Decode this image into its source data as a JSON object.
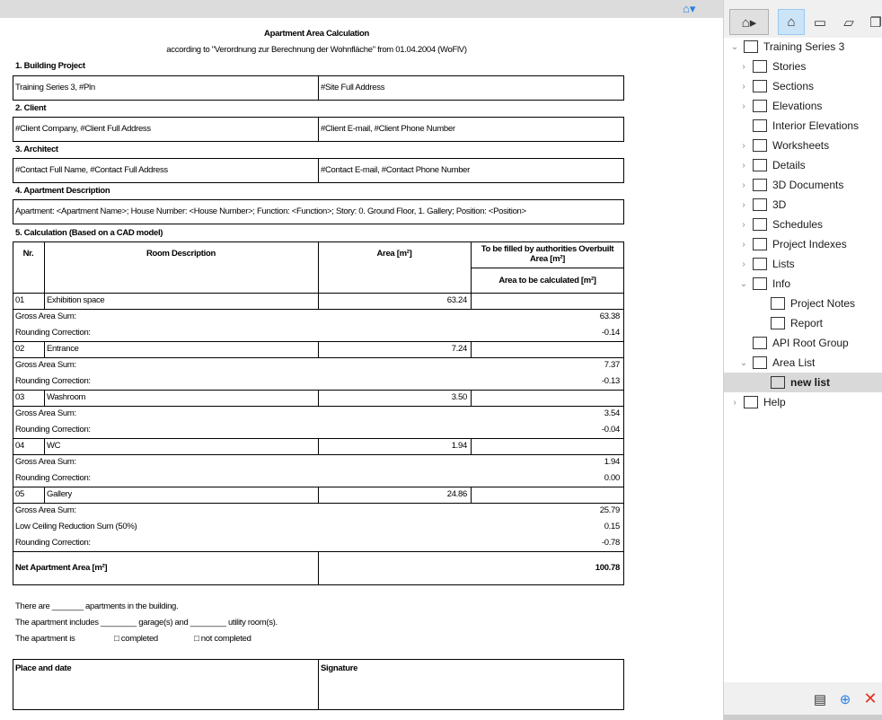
{
  "toolbar": {
    "icon": "tree-view-icon"
  },
  "doc": {
    "title": "Apartment Area Calculation",
    "subtitle": "according to \"Verordnung zur Berechnung der Wohnfläche\" from 01.04.2004 (WoFlV)",
    "s1": "1. Building Project",
    "s1a": "Training Series 3, #Pln",
    "s1b": "#Site Full Address",
    "s2": "2. Client",
    "s2a": "#Client Company, #Client Full Address",
    "s2b": "#Client E-mail, #Client Phone Number",
    "s3": "3. Architect",
    "s3a": "#Contact Full Name, #Contact Full Address",
    "s3b": "#Contact E-mail, #Contact Phone Number",
    "s4": "4. Apartment Description",
    "s4a": "Apartment: <Apartment Name>; House Number: <House Number>; Function: <Function>; Story: 0. Ground Floor, 1. Gallery; Position: <Position>",
    "s5": "5. Calculation (Based on a CAD model)",
    "h_nr": "Nr.",
    "h_desc": "Room Description",
    "h_area": "Area [m²]",
    "h_auth": "To be filled by authorities Overbuilt Area [m²]",
    "h_calc": "Area to be calculated [m²]",
    "rooms": [
      {
        "nr": "01",
        "name": "Exhibition space",
        "area": "63.24",
        "sums": [
          [
            "Gross Area Sum:",
            "63.38"
          ],
          [
            "Rounding Correction:",
            "-0.14"
          ]
        ]
      },
      {
        "nr": "02",
        "name": "Entrance",
        "area": "7.24",
        "sums": [
          [
            "Gross Area Sum:",
            "7.37"
          ],
          [
            "Rounding Correction:",
            "-0.13"
          ]
        ]
      },
      {
        "nr": "03",
        "name": "Washroom",
        "area": "3.50",
        "sums": [
          [
            "Gross Area Sum:",
            "3.54"
          ],
          [
            "Rounding Correction:",
            "-0.04"
          ]
        ]
      },
      {
        "nr": "04",
        "name": "WC",
        "area": "1.94",
        "sums": [
          [
            "Gross Area Sum:",
            "1.94"
          ],
          [
            "Rounding Correction:",
            "0.00"
          ]
        ]
      },
      {
        "nr": "05",
        "name": "Gallery",
        "area": "24.86",
        "sums": [
          [
            "Gross Area Sum:",
            "25.79"
          ],
          [
            "Low Ceiling Reduction Sum (50%)",
            "0.15"
          ],
          [
            "Rounding Correction:",
            "-0.78"
          ]
        ]
      }
    ],
    "net_label": "Net Apartment Area [m²]",
    "net_value": "100.78",
    "line1": "There are _______ apartments in the building.",
    "line2": "The apartment includes ________ garage(s) and ________ utility room(s).",
    "line3": "The apartment is",
    "opt1": "□ completed",
    "opt2": "□ not completed",
    "place": "Place and date",
    "signature": "Signature"
  },
  "sidebar": {
    "items": [
      {
        "label": "Training Series 3",
        "chev": "v",
        "icon": "house-icon",
        "indent": 0
      },
      {
        "label": "Stories",
        "chev": ">",
        "icon": "stories-icon",
        "indent": 1
      },
      {
        "label": "Sections",
        "chev": ">",
        "icon": "section-icon",
        "indent": 1
      },
      {
        "label": "Elevations",
        "chev": ">",
        "icon": "elevation-icon",
        "indent": 1
      },
      {
        "label": "Interior Elevations",
        "chev": "",
        "icon": "interior-elevation-icon",
        "indent": 1
      },
      {
        "label": "Worksheets",
        "chev": ">",
        "icon": "worksheet-icon",
        "indent": 1
      },
      {
        "label": "Details",
        "chev": ">",
        "icon": "detail-icon",
        "indent": 1
      },
      {
        "label": "3D Documents",
        "chev": ">",
        "icon": "3d-document-icon",
        "indent": 1
      },
      {
        "label": "3D",
        "chev": ">",
        "icon": "3d-icon",
        "indent": 1
      },
      {
        "label": "Schedules",
        "chev": ">",
        "icon": "schedule-icon",
        "indent": 1
      },
      {
        "label": "Project Indexes",
        "chev": ">",
        "icon": "index-icon",
        "indent": 1
      },
      {
        "label": "Lists",
        "chev": ">",
        "icon": "list-icon",
        "indent": 1
      },
      {
        "label": "Info",
        "chev": "v",
        "icon": "info-icon",
        "indent": 1
      },
      {
        "label": "Project Notes",
        "chev": "",
        "icon": "document-icon",
        "indent": 2
      },
      {
        "label": "Report",
        "chev": "",
        "icon": "document-icon",
        "indent": 2
      },
      {
        "label": "API Root Group",
        "chev": "",
        "icon": "api-group-icon",
        "indent": 1
      },
      {
        "label": "Area List",
        "chev": "v",
        "icon": "area-list-icon",
        "indent": 1
      },
      {
        "label": "new list",
        "chev": "",
        "icon": "area-list-icon",
        "indent": 2,
        "selected": true
      },
      {
        "label": "Help",
        "chev": ">",
        "icon": "help-icon",
        "indent": 0
      }
    ]
  },
  "colors": {
    "accent": "#2a7de1",
    "selected_bg": "#d9d9d9",
    "delete": "#e03020"
  }
}
